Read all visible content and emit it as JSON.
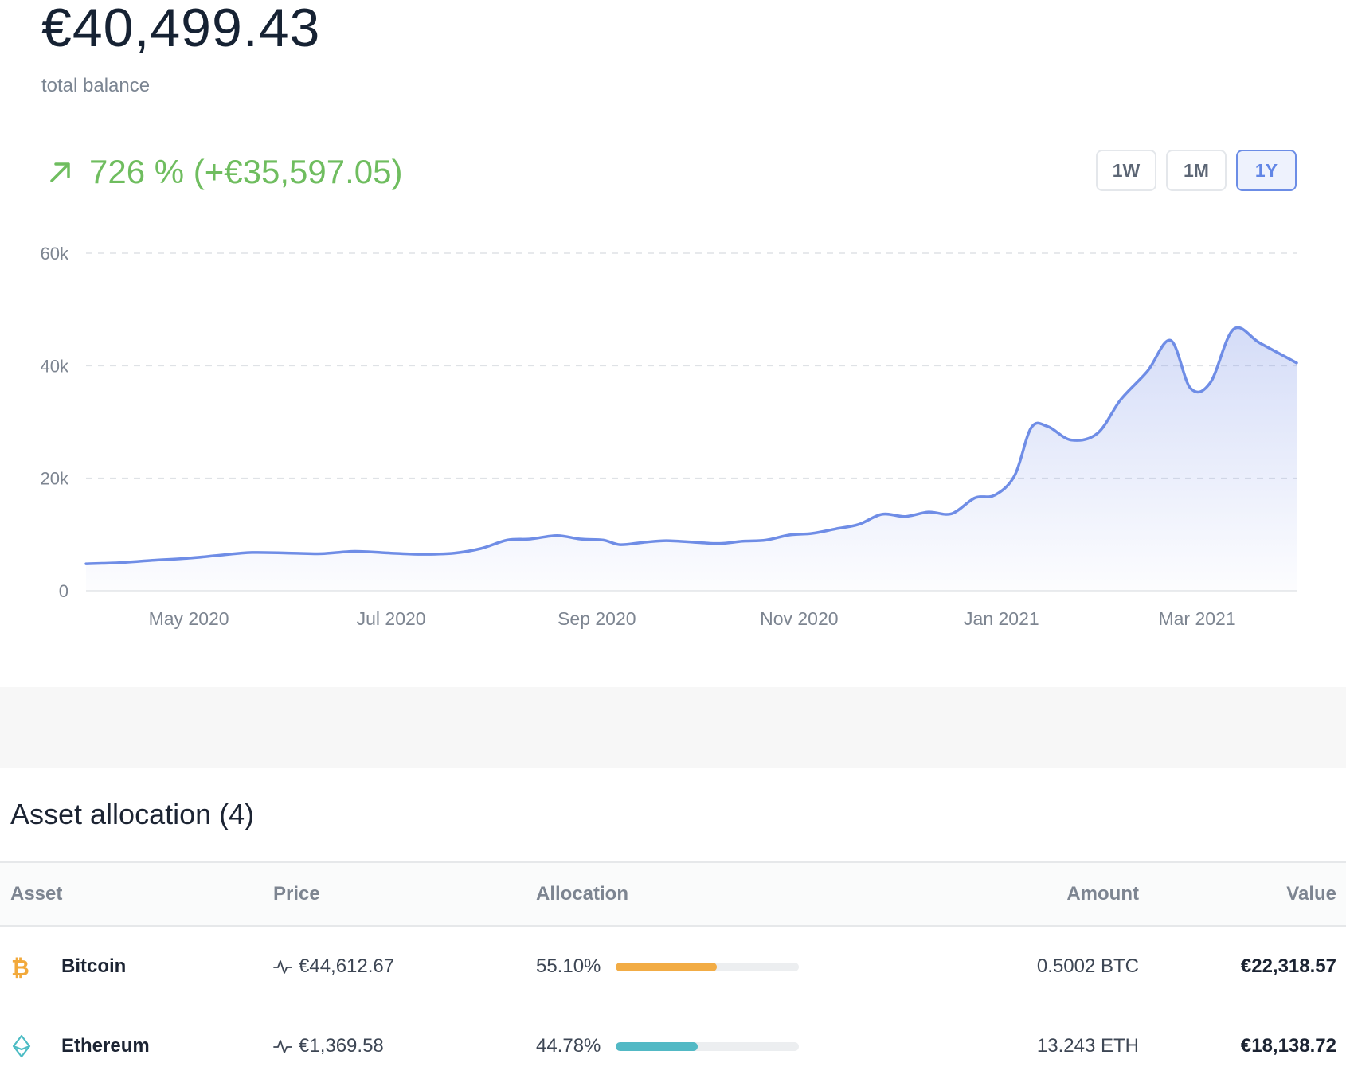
{
  "portfolio": {
    "balance": "€40,499.43",
    "balance_label": "total balance",
    "change_text": "726 % (+€35,597.05)",
    "change_color": "#6fbd5f",
    "change_icon": "arrow-up-right-icon"
  },
  "ranges": [
    {
      "label": "1W",
      "active": false
    },
    {
      "label": "1M",
      "active": false
    },
    {
      "label": "1Y",
      "active": true
    }
  ],
  "chart_data": {
    "type": "area",
    "title": "",
    "x_start": "2020-03-31",
    "x_end": "2021-03-31",
    "yticks": [
      "0",
      "20k",
      "40k",
      "60k"
    ],
    "ylim": [
      0,
      60000
    ],
    "xtick_labels": [
      "May 2020",
      "Jul 2020",
      "Sep 2020",
      "Nov 2020",
      "Jan 2021",
      "Mar 2021"
    ],
    "xtick_dates": [
      "2020-05-01",
      "2020-07-01",
      "2020-09-01",
      "2020-11-01",
      "2021-01-01",
      "2021-03-01"
    ],
    "grid": "horizontal dashed",
    "line_color": "#6f8de6",
    "series": [
      {
        "values": [
          [
            "2020-03-31",
            4800
          ],
          [
            "2020-04-10",
            5000
          ],
          [
            "2020-04-20",
            5400
          ],
          [
            "2020-05-01",
            5800
          ],
          [
            "2020-05-10",
            6300
          ],
          [
            "2020-05-20",
            6800
          ],
          [
            "2020-06-01",
            6700
          ],
          [
            "2020-06-10",
            6600
          ],
          [
            "2020-06-20",
            7000
          ],
          [
            "2020-07-01",
            6700
          ],
          [
            "2020-07-10",
            6500
          ],
          [
            "2020-07-20",
            6700
          ],
          [
            "2020-07-28",
            7500
          ],
          [
            "2020-08-05",
            9000
          ],
          [
            "2020-08-12",
            9200
          ],
          [
            "2020-08-20",
            9800
          ],
          [
            "2020-08-27",
            9200
          ],
          [
            "2020-09-03",
            9000
          ],
          [
            "2020-09-08",
            8200
          ],
          [
            "2020-09-15",
            8600
          ],
          [
            "2020-09-22",
            8900
          ],
          [
            "2020-10-01",
            8600
          ],
          [
            "2020-10-08",
            8400
          ],
          [
            "2020-10-15",
            8800
          ],
          [
            "2020-10-22",
            9000
          ],
          [
            "2020-10-29",
            9900
          ],
          [
            "2020-11-05",
            10200
          ],
          [
            "2020-11-12",
            11000
          ],
          [
            "2020-11-19",
            11800
          ],
          [
            "2020-11-26",
            13600
          ],
          [
            "2020-12-03",
            13200
          ],
          [
            "2020-12-10",
            14000
          ],
          [
            "2020-12-17",
            13700
          ],
          [
            "2020-12-24",
            16500
          ],
          [
            "2020-12-30",
            17000
          ],
          [
            "2021-01-05",
            20500
          ],
          [
            "2021-01-10",
            29000
          ],
          [
            "2021-01-15",
            29200
          ],
          [
            "2021-01-22",
            26800
          ],
          [
            "2021-01-30",
            28000
          ],
          [
            "2021-02-06",
            34000
          ],
          [
            "2021-02-14",
            39000
          ],
          [
            "2021-02-21",
            44500
          ],
          [
            "2021-02-27",
            36000
          ],
          [
            "2021-03-05",
            37000
          ],
          [
            "2021-03-12",
            46500
          ],
          [
            "2021-03-20",
            44000
          ],
          [
            "2021-03-31",
            40500
          ]
        ]
      }
    ]
  },
  "assets": {
    "title": "Asset allocation (4)",
    "columns": {
      "asset": "Asset",
      "price": "Price",
      "allocation": "Allocation",
      "amount": "Amount",
      "value": "Value"
    },
    "rows": [
      {
        "name": "Bitcoin",
        "icon": "bitcoin-icon",
        "icon_color": "#f2a93b",
        "price": "€44,612.67",
        "allocation_pct": 55.1,
        "allocation": "55.10%",
        "bar_color": "#f2ac45",
        "amount": "0.5002 BTC",
        "value": "€22,318.57"
      },
      {
        "name": "Ethereum",
        "icon": "ethereum-icon",
        "icon_color": "#4cbcc4",
        "price": "€1,369.58",
        "allocation_pct": 44.78,
        "allocation": "44.78%",
        "bar_color": "#52b9c5",
        "amount": "13.243 ETH",
        "value": "€18,138.72"
      }
    ]
  }
}
